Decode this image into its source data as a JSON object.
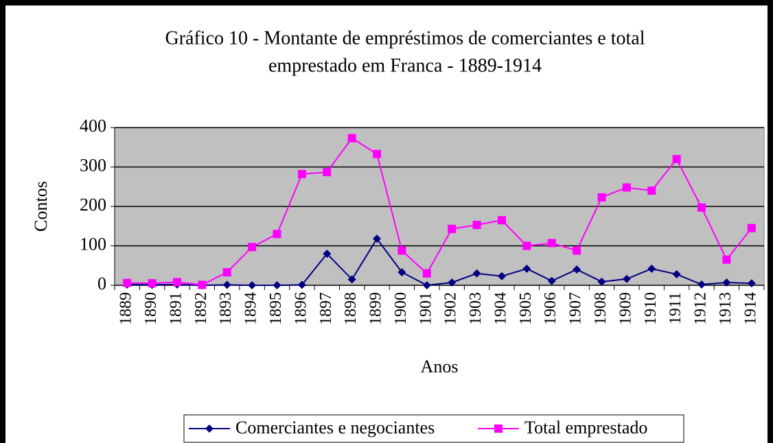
{
  "chart_data": {
    "type": "line",
    "title": [
      "Gráfico 10 - Montante de empréstimos de comerciantes e total",
      "emprestado em Franca - 1889-1914"
    ],
    "x_label": "Anos",
    "y_label": "Contos",
    "categories": [
      "1889",
      "1890",
      "1891",
      "1892",
      "1893",
      "1894",
      "1895",
      "1896",
      "1897",
      "1898",
      "1899",
      "1900",
      "1901",
      "1902",
      "1903",
      "1904",
      "1905",
      "1906",
      "1907",
      "1908",
      "1909",
      "1910",
      "1911",
      "1912",
      "1913",
      "1914"
    ],
    "series": [
      {
        "name": "Comerciantes e negociantes",
        "color": "#000080",
        "marker": "diamond",
        "values": [
          2,
          1,
          2,
          0,
          1,
          0,
          0,
          1,
          80,
          15,
          118,
          33,
          0,
          7,
          30,
          23,
          42,
          11,
          40,
          9,
          16,
          42,
          28,
          2,
          7,
          5
        ]
      },
      {
        "name": "Total emprestado",
        "color": "#ff00ff",
        "marker": "square",
        "values": [
          6,
          5,
          8,
          1,
          33,
          97,
          130,
          282,
          287,
          373,
          333,
          88,
          30,
          143,
          153,
          165,
          100,
          107,
          88,
          223,
          248,
          240,
          320,
          197,
          65,
          145
        ]
      }
    ],
    "ylim": [
      0,
      400
    ],
    "yticks": [
      0,
      100,
      200,
      300,
      400
    ],
    "grid": true,
    "legend": "bottom"
  }
}
